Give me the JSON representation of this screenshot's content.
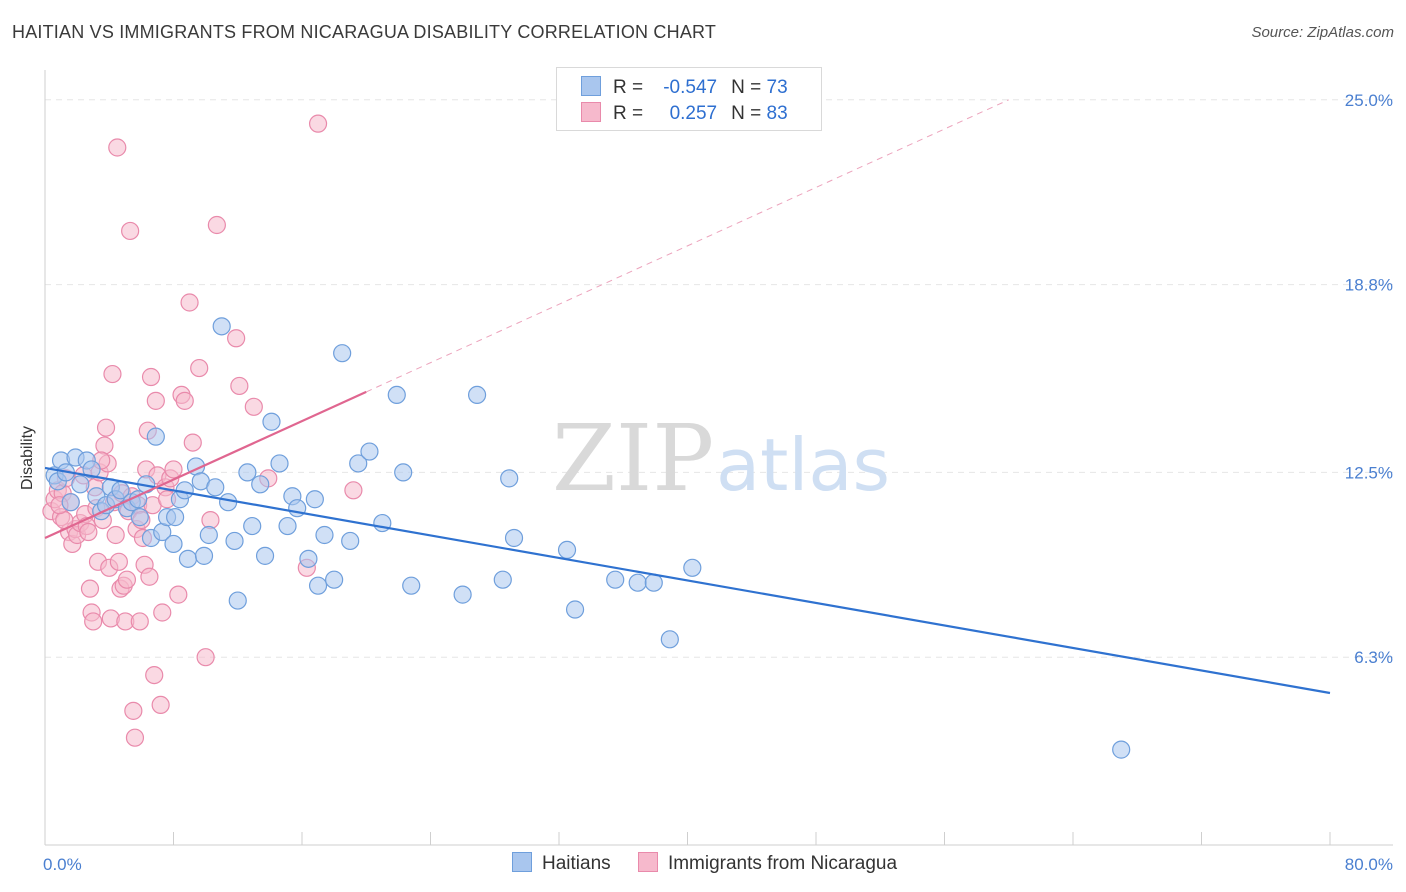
{
  "header": {
    "title": "HAITIAN VS IMMIGRANTS FROM NICARAGUA DISABILITY CORRELATION CHART",
    "source": "Source: ZipAtlas.com"
  },
  "watermark": {
    "zip": "ZIP",
    "atlas": "atlas"
  },
  "legend": {
    "rows": [
      {
        "r_label": "R =",
        "r_value": "-0.547",
        "n_label": "N =",
        "n_value": "73"
      },
      {
        "r_label": "R =",
        "r_value": "0.257",
        "n_label": "N =",
        "n_value": "83"
      }
    ]
  },
  "bottom_legend": {
    "haitians": "Haitians",
    "nicaragua": "Immigrants from Nicaragua"
  },
  "colors": {
    "blue_fill": "#a9c6ee",
    "blue_stroke": "#6f9fdc",
    "blue_line": "#2f72d0",
    "pink_fill": "#f6b9cc",
    "pink_stroke": "#e98aab",
    "pink_line": "#e06690"
  },
  "chart_data": {
    "type": "scatter",
    "title": "HAITIAN VS IMMIGRANTS FROM NICARAGUA DISABILITY CORRELATION CHART",
    "xlabel": "",
    "ylabel": "Disability",
    "xlim": [
      0,
      80
    ],
    "ylim": [
      0,
      26
    ],
    "x_tick_labels": [
      "0.0%",
      "80.0%"
    ],
    "y_ticks": [
      6.3,
      12.5,
      18.8,
      25.0
    ],
    "y_tick_labels": [
      "6.3%",
      "12.5%",
      "18.8%",
      "25.0%"
    ],
    "grid": true,
    "legend_position": "top-center",
    "series": [
      {
        "name": "Haitians",
        "r": -0.547,
        "n": 73,
        "trend": {
          "x": [
            0,
            80
          ],
          "y": [
            12.65,
            5.1
          ]
        },
        "points": [
          [
            0.6,
            12.4
          ],
          [
            0.8,
            12.2
          ],
          [
            1.0,
            12.9
          ],
          [
            1.3,
            12.5
          ],
          [
            1.6,
            11.5
          ],
          [
            1.9,
            13.0
          ],
          [
            2.2,
            12.1
          ],
          [
            2.6,
            12.9
          ],
          [
            2.9,
            12.6
          ],
          [
            3.2,
            11.7
          ],
          [
            3.5,
            11.2
          ],
          [
            3.8,
            11.4
          ],
          [
            4.1,
            12.0
          ],
          [
            4.4,
            11.6
          ],
          [
            4.7,
            11.9
          ],
          [
            5.1,
            11.3
          ],
          [
            5.4,
            11.5
          ],
          [
            5.9,
            11.0
          ],
          [
            6.3,
            12.1
          ],
          [
            6.6,
            10.3
          ],
          [
            6.9,
            13.7
          ],
          [
            7.3,
            10.5
          ],
          [
            7.6,
            11.0
          ],
          [
            8.0,
            10.1
          ],
          [
            8.4,
            11.6
          ],
          [
            8.7,
            11.9
          ],
          [
            8.9,
            9.6
          ],
          [
            9.4,
            12.7
          ],
          [
            9.7,
            12.2
          ],
          [
            9.9,
            9.7
          ],
          [
            10.2,
            10.4
          ],
          [
            10.6,
            12.0
          ],
          [
            11.0,
            17.4
          ],
          [
            11.4,
            11.5
          ],
          [
            11.8,
            10.2
          ],
          [
            12.0,
            8.2
          ],
          [
            12.6,
            12.5
          ],
          [
            12.9,
            10.7
          ],
          [
            13.4,
            12.1
          ],
          [
            13.7,
            9.7
          ],
          [
            14.1,
            14.2
          ],
          [
            14.6,
            12.8
          ],
          [
            15.1,
            10.7
          ],
          [
            15.4,
            11.7
          ],
          [
            15.7,
            11.3
          ],
          [
            16.4,
            9.6
          ],
          [
            16.8,
            11.6
          ],
          [
            17.0,
            8.7
          ],
          [
            17.4,
            10.4
          ],
          [
            18.0,
            8.9
          ],
          [
            18.5,
            16.5
          ],
          [
            19.0,
            10.2
          ],
          [
            19.5,
            12.8
          ],
          [
            20.2,
            13.2
          ],
          [
            21.0,
            10.8
          ],
          [
            21.9,
            15.1
          ],
          [
            22.3,
            12.5
          ],
          [
            22.8,
            8.7
          ],
          [
            26.0,
            8.4
          ],
          [
            26.9,
            15.1
          ],
          [
            28.5,
            8.9
          ],
          [
            28.9,
            12.3
          ],
          [
            29.2,
            10.3
          ],
          [
            32.5,
            9.9
          ],
          [
            33.0,
            7.9
          ],
          [
            35.5,
            8.9
          ],
          [
            36.9,
            8.8
          ],
          [
            37.9,
            8.8
          ],
          [
            38.9,
            6.9
          ],
          [
            40.3,
            9.3
          ],
          [
            67.0,
            3.2
          ],
          [
            8.1,
            11.0
          ],
          [
            5.8,
            11.6
          ]
        ]
      },
      {
        "name": "Immigrants from Nicaragua",
        "r": 0.257,
        "n": 83,
        "trend": {
          "x": [
            0,
            20
          ],
          "y": [
            10.3,
            15.2
          ]
        },
        "trend_extension": {
          "x": [
            20,
            60
          ],
          "y": [
            15.2,
            25.0
          ]
        },
        "points": [
          [
            0.4,
            11.2
          ],
          [
            0.6,
            11.6
          ],
          [
            0.8,
            11.9
          ],
          [
            1.0,
            11.0
          ],
          [
            1.1,
            11.8
          ],
          [
            1.3,
            12.3
          ],
          [
            1.5,
            10.5
          ],
          [
            1.6,
            11.5
          ],
          [
            1.7,
            10.1
          ],
          [
            1.9,
            10.6
          ],
          [
            2.0,
            10.4
          ],
          [
            2.2,
            10.8
          ],
          [
            2.4,
            12.4
          ],
          [
            2.5,
            11.1
          ],
          [
            2.6,
            10.7
          ],
          [
            2.8,
            8.6
          ],
          [
            2.9,
            7.8
          ],
          [
            3.0,
            7.5
          ],
          [
            3.1,
            12.0
          ],
          [
            3.2,
            11.3
          ],
          [
            3.3,
            9.5
          ],
          [
            3.4,
            12.5
          ],
          [
            3.6,
            10.9
          ],
          [
            3.7,
            13.4
          ],
          [
            3.8,
            14.0
          ],
          [
            3.9,
            12.8
          ],
          [
            4.0,
            9.3
          ],
          [
            4.1,
            7.6
          ],
          [
            4.2,
            15.8
          ],
          [
            4.3,
            11.5
          ],
          [
            4.4,
            10.4
          ],
          [
            4.5,
            23.4
          ],
          [
            4.6,
            9.5
          ],
          [
            4.7,
            8.6
          ],
          [
            4.8,
            11.8
          ],
          [
            4.9,
            8.7
          ],
          [
            5.0,
            7.5
          ],
          [
            5.1,
            8.9
          ],
          [
            5.2,
            11.2
          ],
          [
            5.3,
            20.6
          ],
          [
            5.4,
            11.7
          ],
          [
            5.5,
            4.5
          ],
          [
            5.6,
            3.6
          ],
          [
            5.7,
            10.6
          ],
          [
            5.8,
            11.4
          ],
          [
            5.9,
            7.5
          ],
          [
            6.0,
            10.9
          ],
          [
            6.1,
            10.3
          ],
          [
            6.2,
            9.4
          ],
          [
            6.3,
            12.6
          ],
          [
            6.4,
            13.9
          ],
          [
            6.5,
            9.0
          ],
          [
            6.6,
            15.7
          ],
          [
            6.7,
            11.4
          ],
          [
            6.8,
            5.7
          ],
          [
            6.9,
            14.9
          ],
          [
            7.0,
            12.4
          ],
          [
            7.2,
            4.7
          ],
          [
            7.3,
            7.8
          ],
          [
            7.5,
            12.0
          ],
          [
            7.6,
            11.6
          ],
          [
            7.8,
            12.3
          ],
          [
            8.0,
            12.6
          ],
          [
            8.3,
            8.4
          ],
          [
            8.5,
            15.1
          ],
          [
            8.7,
            14.9
          ],
          [
            9.0,
            18.2
          ],
          [
            9.2,
            13.5
          ],
          [
            9.6,
            16.0
          ],
          [
            10.0,
            6.3
          ],
          [
            10.3,
            10.9
          ],
          [
            10.7,
            20.8
          ],
          [
            11.9,
            17.0
          ],
          [
            12.1,
            15.4
          ],
          [
            13.0,
            14.7
          ],
          [
            13.9,
            12.3
          ],
          [
            16.3,
            9.3
          ],
          [
            17.0,
            24.2
          ],
          [
            19.2,
            11.9
          ],
          [
            2.7,
            10.5
          ],
          [
            1.2,
            10.9
          ],
          [
            3.5,
            12.9
          ],
          [
            0.9,
            11.4
          ]
        ]
      }
    ]
  }
}
